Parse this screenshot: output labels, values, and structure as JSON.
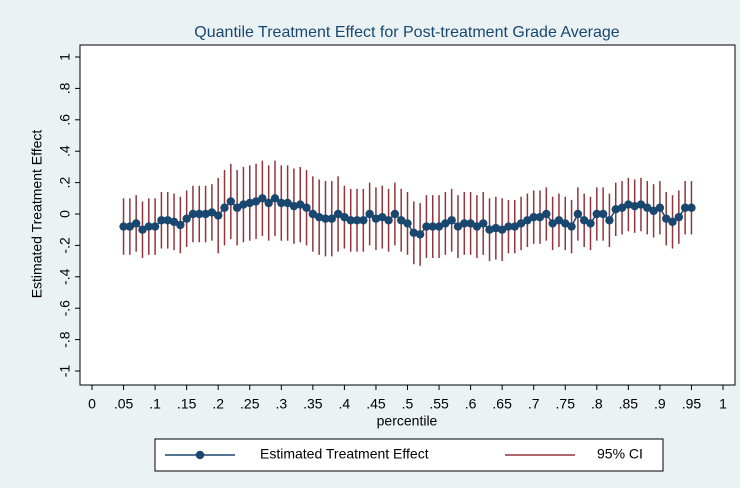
{
  "chart_data": {
    "type": "line",
    "title": "Quantile Treatment Effect for Post-treatment Grade Average",
    "x_label": "percentile",
    "y_label": "Estimated Treatment Effect",
    "x": [
      0.05,
      0.06,
      0.07,
      0.08,
      0.09,
      0.1,
      0.11,
      0.12,
      0.13,
      0.14,
      0.15,
      0.16,
      0.17,
      0.18,
      0.19,
      0.2,
      0.21,
      0.22,
      0.23,
      0.24,
      0.25,
      0.26,
      0.27,
      0.28,
      0.29,
      0.3,
      0.31,
      0.32,
      0.33,
      0.34,
      0.35,
      0.36,
      0.37,
      0.38,
      0.39,
      0.4,
      0.41,
      0.42,
      0.43,
      0.44,
      0.45,
      0.46,
      0.47,
      0.48,
      0.49,
      0.5,
      0.51,
      0.52,
      0.53,
      0.54,
      0.55,
      0.56,
      0.57,
      0.58,
      0.59,
      0.6,
      0.61,
      0.62,
      0.63,
      0.64,
      0.65,
      0.66,
      0.67,
      0.68,
      0.69,
      0.7,
      0.71,
      0.72,
      0.73,
      0.74,
      0.75,
      0.76,
      0.77,
      0.78,
      0.79,
      0.8,
      0.81,
      0.82,
      0.83,
      0.84,
      0.85,
      0.86,
      0.87,
      0.88,
      0.89,
      0.9,
      0.91,
      0.92,
      0.93,
      0.94,
      0.95
    ],
    "series": [
      {
        "name": "Estimated Treatment Effect",
        "color": "#1a476f",
        "values": [
          -0.08,
          -0.08,
          -0.06,
          -0.1,
          -0.08,
          -0.08,
          -0.04,
          -0.04,
          -0.05,
          -0.07,
          -0.03,
          0,
          0,
          0,
          0.01,
          -0.01,
          0.04,
          0.08,
          0.04,
          0.06,
          0.07,
          0.08,
          0.1,
          0.07,
          0.1,
          0.07,
          0.07,
          0.05,
          0.06,
          0.04,
          0,
          -0.02,
          -0.03,
          -0.03,
          0,
          -0.02,
          -0.04,
          -0.04,
          -0.04,
          0,
          -0.03,
          -0.02,
          -0.04,
          0,
          -0.04,
          -0.06,
          -0.12,
          -0.13,
          -0.08,
          -0.08,
          -0.08,
          -0.06,
          -0.04,
          -0.08,
          -0.06,
          -0.06,
          -0.08,
          -0.06,
          -0.1,
          -0.09,
          -0.1,
          -0.08,
          -0.08,
          -0.06,
          -0.04,
          -0.02,
          -0.02,
          0,
          -0.06,
          -0.04,
          -0.06,
          -0.08,
          0,
          -0.04,
          -0.06,
          0,
          0,
          -0.04,
          0.03,
          0.04,
          0.06,
          0.05,
          0.06,
          0.04,
          0.02,
          0.04,
          -0.03,
          -0.05,
          -0.02,
          0.04,
          0.04
        ]
      },
      {
        "name": "95% CI",
        "color": "#90353b",
        "lower": [
          -0.26,
          -0.26,
          -0.24,
          -0.28,
          -0.26,
          -0.26,
          -0.22,
          -0.22,
          -0.23,
          -0.25,
          -0.21,
          -0.18,
          -0.18,
          -0.18,
          -0.17,
          -0.25,
          -0.2,
          -0.16,
          -0.2,
          -0.18,
          -0.17,
          -0.16,
          -0.14,
          -0.17,
          -0.14,
          -0.17,
          -0.17,
          -0.19,
          -0.18,
          -0.2,
          -0.24,
          -0.26,
          -0.27,
          -0.27,
          -0.24,
          -0.22,
          -0.24,
          -0.24,
          -0.24,
          -0.2,
          -0.23,
          -0.22,
          -0.24,
          -0.2,
          -0.24,
          -0.26,
          -0.32,
          -0.33,
          -0.28,
          -0.28,
          -0.28,
          -0.26,
          -0.24,
          -0.28,
          -0.26,
          -0.26,
          -0.28,
          -0.26,
          -0.3,
          -0.29,
          -0.3,
          -0.25,
          -0.25,
          -0.23,
          -0.21,
          -0.19,
          -0.19,
          -0.17,
          -0.23,
          -0.21,
          -0.23,
          -0.25,
          -0.17,
          -0.21,
          -0.23,
          -0.17,
          -0.17,
          -0.21,
          -0.14,
          -0.13,
          -0.11,
          -0.12,
          -0.11,
          -0.13,
          -0.15,
          -0.13,
          -0.2,
          -0.22,
          -0.19,
          -0.13,
          -0.13
        ],
        "upper": [
          0.1,
          0.1,
          0.12,
          0.08,
          0.1,
          0.1,
          0.14,
          0.14,
          0.13,
          0.11,
          0.15,
          0.18,
          0.18,
          0.18,
          0.19,
          0.23,
          0.28,
          0.32,
          0.28,
          0.3,
          0.31,
          0.32,
          0.34,
          0.31,
          0.34,
          0.31,
          0.31,
          0.29,
          0.3,
          0.28,
          0.24,
          0.22,
          0.21,
          0.21,
          0.24,
          0.18,
          0.16,
          0.16,
          0.16,
          0.2,
          0.17,
          0.18,
          0.16,
          0.2,
          0.16,
          0.14,
          0.08,
          0.07,
          0.12,
          0.12,
          0.12,
          0.14,
          0.16,
          0.12,
          0.14,
          0.14,
          0.12,
          0.14,
          0.1,
          0.11,
          0.1,
          0.09,
          0.09,
          0.11,
          0.13,
          0.15,
          0.15,
          0.17,
          0.11,
          0.13,
          0.11,
          0.09,
          0.17,
          0.13,
          0.11,
          0.17,
          0.17,
          0.13,
          0.2,
          0.21,
          0.23,
          0.22,
          0.23,
          0.21,
          0.19,
          0.21,
          0.14,
          0.12,
          0.15,
          0.21,
          0.21
        ]
      }
    ],
    "xlim": [
      0,
      1
    ],
    "xticks": [
      0,
      {
        "value": 0.05,
        "label": ".05"
      },
      {
        "value": 0.1,
        "label": ".1"
      },
      {
        "value": 0.15,
        "label": ".15"
      },
      {
        "value": 0.2,
        "label": ".2"
      },
      {
        "value": 0.25,
        "label": ".25"
      },
      {
        "value": 0.3,
        "label": ".3"
      },
      {
        "value": 0.35,
        "label": ".35"
      },
      {
        "value": 0.4,
        "label": ".4"
      },
      {
        "value": 0.45,
        "label": ".45"
      },
      {
        "value": 0.5,
        "label": ".5"
      },
      {
        "value": 0.55,
        "label": ".55"
      },
      {
        "value": 0.6,
        "label": ".6"
      },
      {
        "value": 0.65,
        "label": ".65"
      },
      {
        "value": 0.7,
        "label": ".7"
      },
      {
        "value": 0.75,
        "label": ".75"
      },
      {
        "value": 0.8,
        "label": ".8"
      },
      {
        "value": 0.85,
        "label": ".85"
      },
      {
        "value": 0.9,
        "label": ".9"
      },
      {
        "value": 0.95,
        "label": ".95"
      },
      1
    ],
    "ylim": [
      -1,
      1
    ],
    "yticks": [
      -1,
      {
        "value": -0.8,
        "label": "-.8"
      },
      {
        "value": -0.6,
        "label": "-.6"
      },
      {
        "value": -0.4,
        "label": "-.4"
      },
      {
        "value": -0.2,
        "label": "-.2"
      },
      0,
      {
        "value": 0.2,
        "label": ".2"
      },
      {
        "value": 0.4,
        "label": ".4"
      },
      {
        "value": 0.6,
        "label": ".6"
      },
      {
        "value": 0.8,
        "label": ".8"
      },
      1
    ],
    "grid": false,
    "legend": "bottom"
  }
}
